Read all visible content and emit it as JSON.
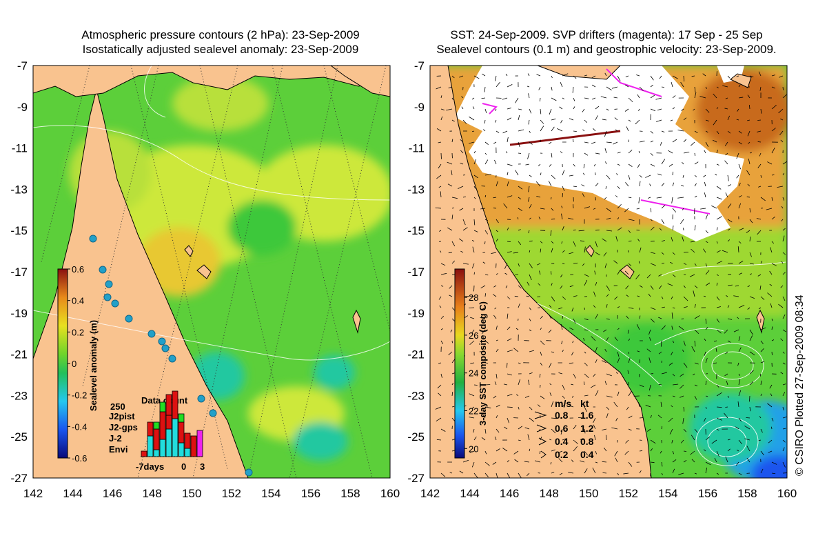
{
  "left_panel": {
    "title_line1": "Atmospheric pressure contours (2 hPa): 23-Sep-2009",
    "title_line2": "Isostatically adjusted sealevel anomaly: 23-Sep-2009",
    "colorbar_label": "Sealevel anomaly (m)",
    "colorbar_ticks": [
      "0.6",
      "0.4",
      "0.2",
      "0",
      "-0.2",
      "-0.4",
      "-0.6"
    ],
    "colorbar_range": [
      -0.6,
      0.6
    ],
    "data_count": {
      "title": "Data count",
      "y_max_label": "250",
      "x_labels": [
        "-7days",
        "0",
        "3"
      ],
      "legend": [
        {
          "name": "J2pist",
          "color": "#22dd22"
        },
        {
          "name": "J2-gps",
          "color": "#ee22ee"
        },
        {
          "name": "J-2",
          "color": "#dd1111"
        },
        {
          "name": "Envi",
          "color": "#22dddd"
        }
      ]
    }
  },
  "right_panel": {
    "title_line1": "SST: 24-Sep-2009. SVP drifters (magenta): 17 Sep - 25 Sep",
    "title_line2": "Sealevel contours (0.1 m) and geostrophic velocity: 23-Sep-2009.",
    "colorbar_label": "3-day SST composite (deg C)",
    "colorbar_ticks": [
      "28",
      "26",
      "24",
      "22",
      "20"
    ],
    "colorbar_range": [
      19.5,
      29.5
    ],
    "velocity_legend": {
      "header_ms": "m/s",
      "header_kt": "kt",
      "rows": [
        {
          "ms": "0.8",
          "kt": "1.6"
        },
        {
          "ms": "0.6",
          "kt": "1.2"
        },
        {
          "ms": "0.4",
          "kt": "0.8"
        },
        {
          "ms": "0.2",
          "kt": "0.4"
        }
      ]
    }
  },
  "axes": {
    "lat_labels": [
      "-7",
      "-9",
      "-11",
      "-13",
      "-15",
      "-17",
      "-19",
      "-21",
      "-23",
      "-25",
      "-27"
    ],
    "lon_labels": [
      "142",
      "144",
      "146",
      "148",
      "150",
      "152",
      "154",
      "156",
      "158",
      "160"
    ],
    "lat_range": [
      -27,
      -7
    ],
    "lon_range": [
      142,
      160
    ]
  },
  "credit": "© CSIRO Plotted 27-Sep-2009 08:34",
  "colors": {
    "land": "#f9c38f",
    "ocean_green": "#5ccf3a",
    "ocean_yellow": "#cde83a",
    "ocean_orange": "#e8a23a",
    "cloud": "#ffffff",
    "drifter": "#ee22ee"
  }
}
